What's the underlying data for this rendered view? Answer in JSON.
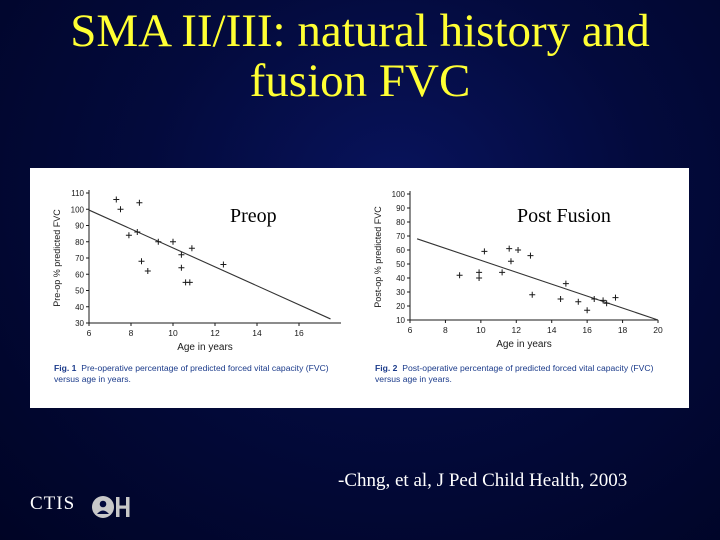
{
  "slide": {
    "title_line1": "SMA II/III: natural history and",
    "title_line2": "fusion FVC",
    "label_preop": "Preop",
    "label_postfusion": "Post Fusion",
    "citation": "-Chng, et al, J Ped Child Health, 2003",
    "ctis": "CTIS",
    "title_color": "#ffff33",
    "background_color": "#030a3c"
  },
  "captions": [
    {
      "fig": "Fig. 1",
      "text": "Pre-operative percentage of predicted forced vital capacity (FVC) versus age in years."
    },
    {
      "fig": "Fig. 2",
      "text": "Post-operative percentage of predicted forced vital capacity (FVC) versus age in years."
    }
  ],
  "chart_data": [
    {
      "type": "scatter",
      "title": "",
      "xlabel": "Age in years",
      "ylabel": "Pre-op % predicted FVC",
      "xlim": [
        6,
        18
      ],
      "ylim": [
        30,
        110
      ],
      "xticks": [
        6,
        8,
        10,
        12,
        14,
        16
      ],
      "yticks": [
        30,
        40,
        50,
        60,
        70,
        80,
        90,
        100,
        110
      ],
      "marker": "+",
      "points": [
        [
          7.3,
          106
        ],
        [
          7.5,
          100
        ],
        [
          7.9,
          84
        ],
        [
          8.3,
          86
        ],
        [
          8.4,
          104
        ],
        [
          8.5,
          68
        ],
        [
          8.8,
          62
        ],
        [
          9.3,
          80
        ],
        [
          10.0,
          80
        ],
        [
          10.4,
          64
        ],
        [
          10.4,
          72
        ],
        [
          10.6,
          55
        ],
        [
          10.8,
          55
        ],
        [
          10.9,
          76
        ],
        [
          12.4,
          66
        ]
      ],
      "trend": {
        "x": [
          6,
          17.5
        ],
        "y": [
          99.5,
          32.5
        ]
      },
      "grid": false,
      "legend": "none"
    },
    {
      "type": "scatter",
      "title": "",
      "xlabel": "Age in years",
      "ylabel": "Post-op % predicted FVC",
      "xlim": [
        6,
        20
      ],
      "ylim": [
        10,
        100
      ],
      "xticks": [
        6,
        8,
        10,
        12,
        14,
        16,
        18,
        20
      ],
      "yticks": [
        10,
        20,
        30,
        40,
        50,
        60,
        70,
        80,
        90,
        100
      ],
      "marker": "+",
      "points": [
        [
          8.8,
          42
        ],
        [
          9.9,
          44
        ],
        [
          9.9,
          40
        ],
        [
          10.2,
          59
        ],
        [
          11.2,
          44
        ],
        [
          11.6,
          61
        ],
        [
          11.7,
          52
        ],
        [
          12.1,
          60
        ],
        [
          12.8,
          56
        ],
        [
          12.9,
          28
        ],
        [
          14.5,
          25
        ],
        [
          14.8,
          36
        ],
        [
          15.5,
          23
        ],
        [
          16.0,
          17
        ],
        [
          16.4,
          25
        ],
        [
          16.9,
          24
        ],
        [
          17.1,
          22
        ],
        [
          17.6,
          26
        ]
      ],
      "trend": {
        "x": [
          6.4,
          20
        ],
        "y": [
          68,
          10
        ]
      },
      "grid": false,
      "legend": "none"
    }
  ]
}
